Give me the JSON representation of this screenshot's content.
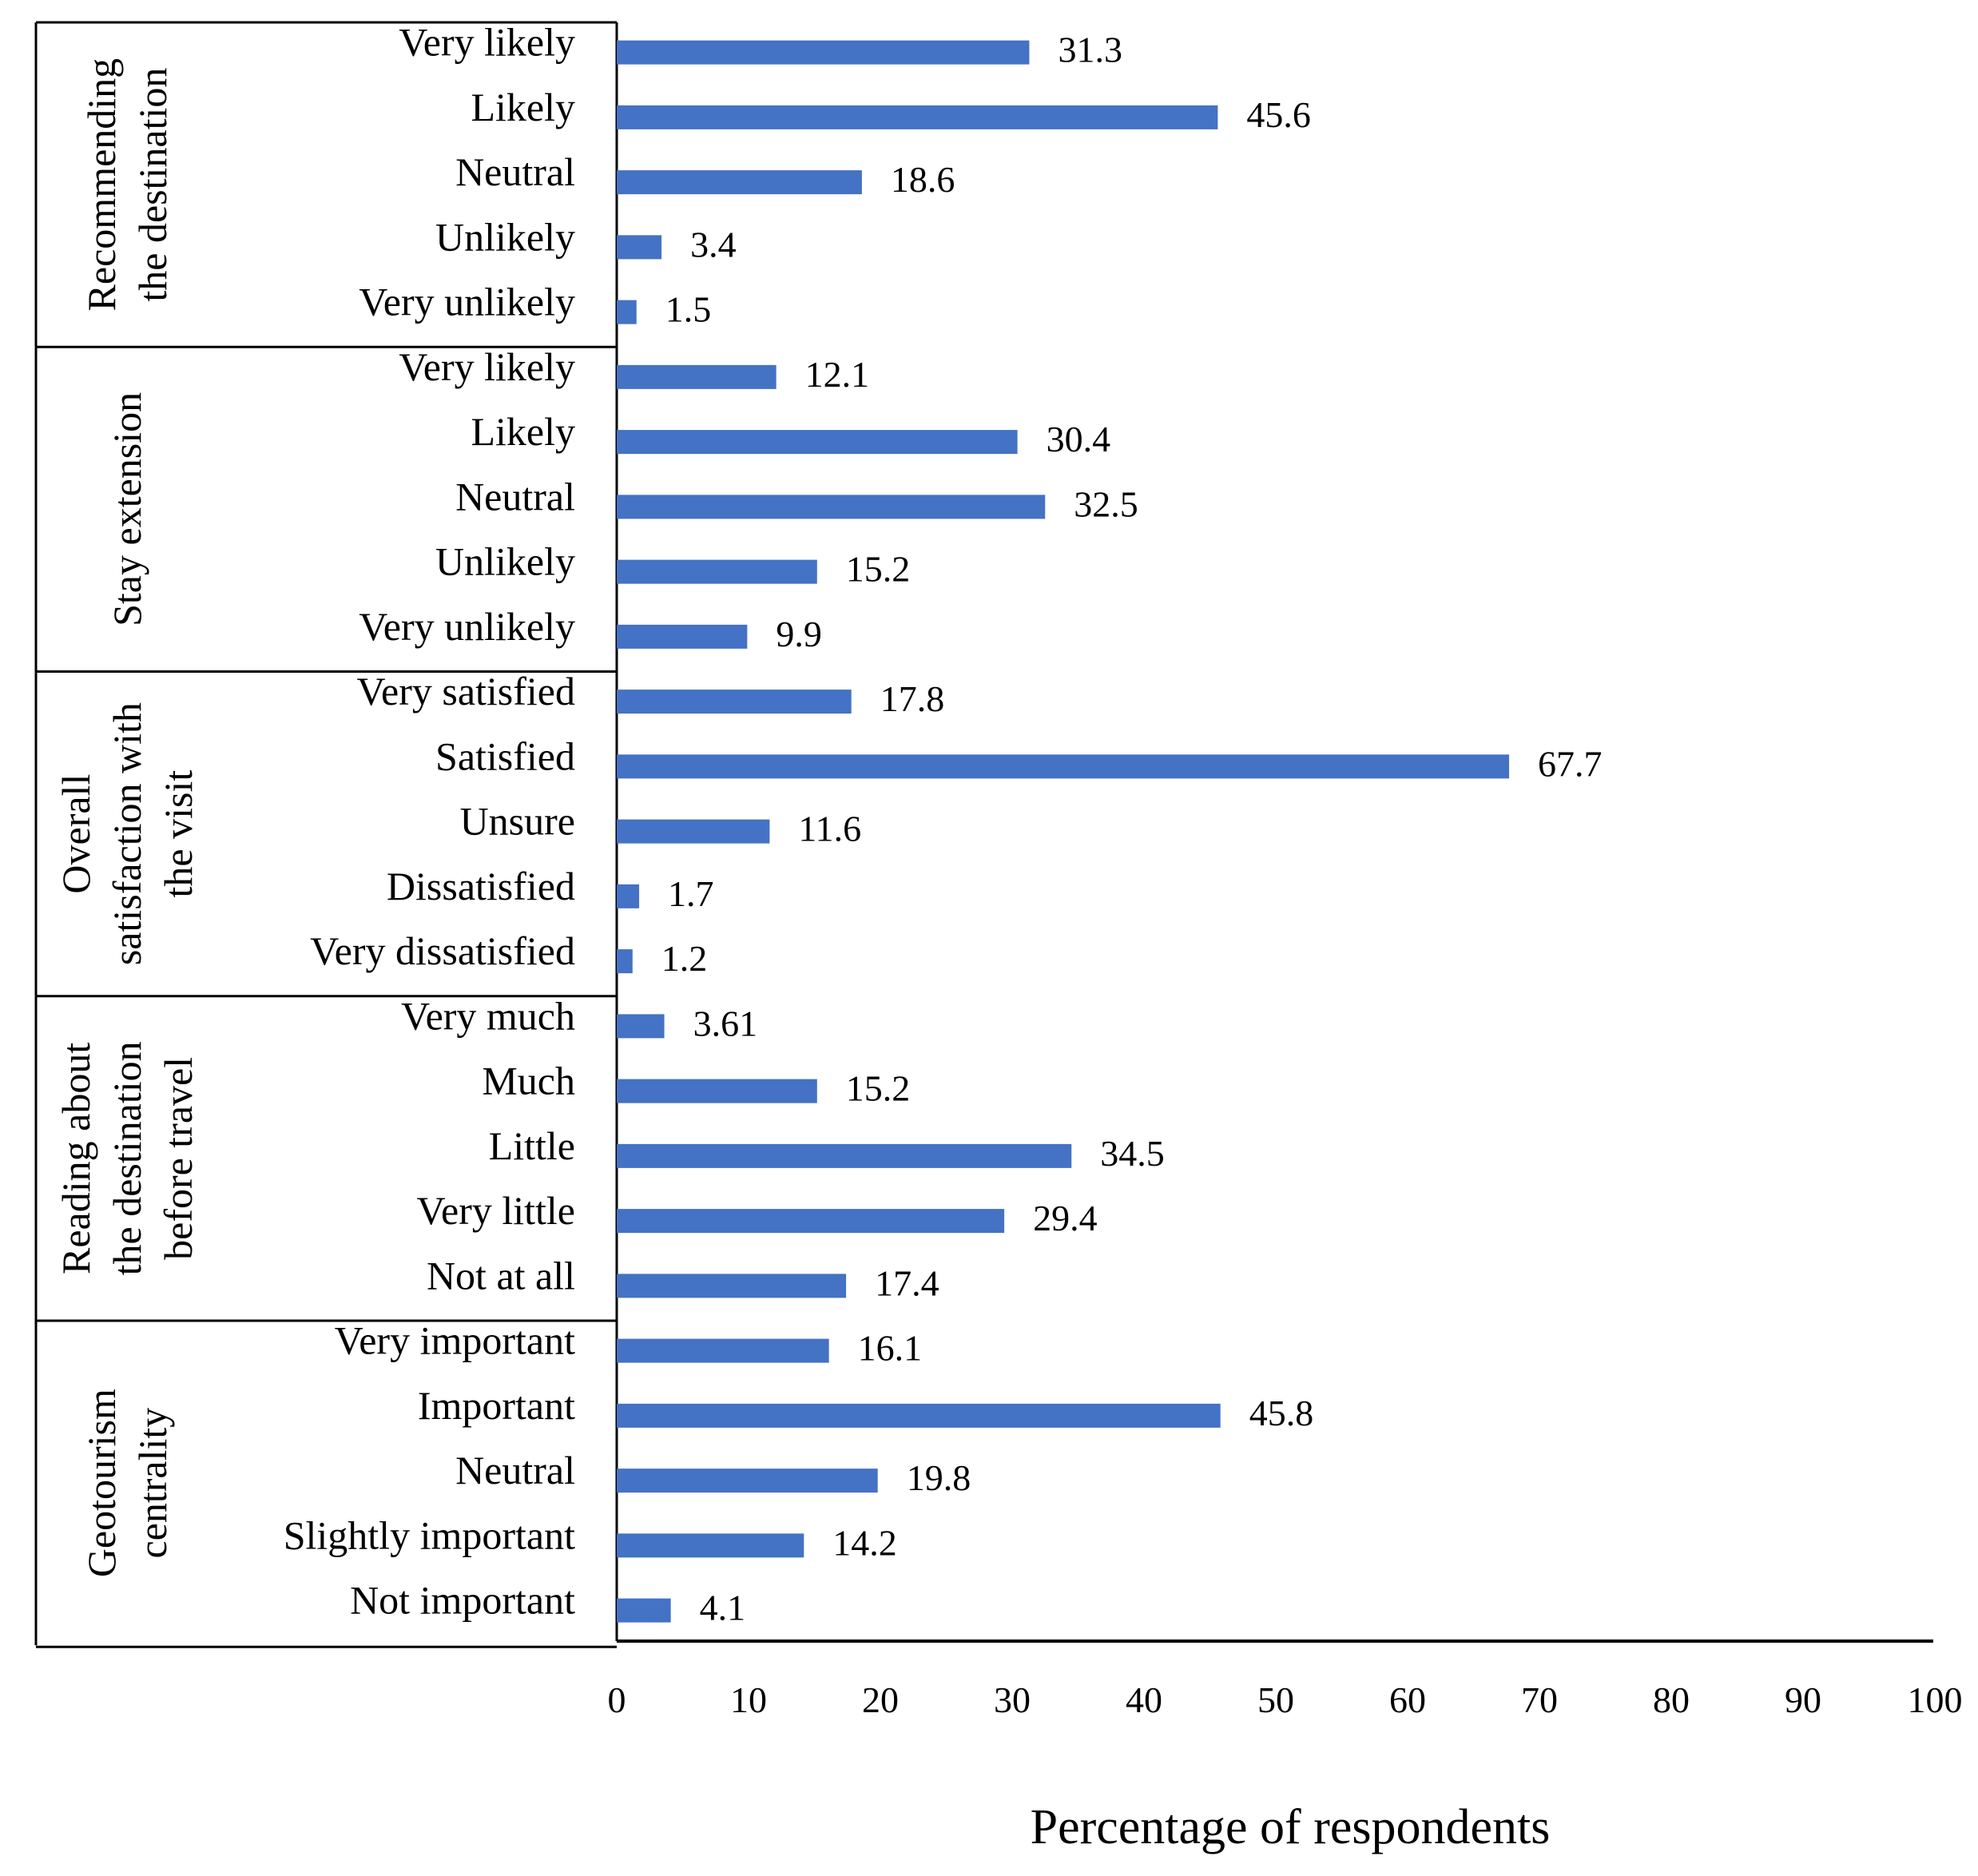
{
  "chart_data": {
    "type": "bar",
    "orientation": "horizontal",
    "xlabel": "Percentage of respondents",
    "xlim": [
      0,
      100
    ],
    "xticks": [
      0,
      10,
      20,
      30,
      40,
      50,
      60,
      70,
      80,
      90,
      100
    ],
    "bar_color": "#4472C4",
    "groups": [
      {
        "name_lines": [
          "Recommending",
          "the destination"
        ],
        "categories": [
          "Very likely",
          "Likely",
          "Neutral",
          "Unlikely",
          "Very unlikely"
        ],
        "values": [
          31.3,
          45.6,
          18.6,
          3.4,
          1.5
        ],
        "labels": [
          "31.3",
          "45.6",
          "18.6",
          "3.4",
          "1.5"
        ]
      },
      {
        "name_lines": [
          "Stay extension"
        ],
        "categories": [
          "Very likely",
          "Likely",
          "Neutral",
          "Unlikely",
          "Very unlikely"
        ],
        "values": [
          12.1,
          30.4,
          32.5,
          15.2,
          9.9
        ],
        "labels": [
          "12.1",
          "30.4",
          "32.5",
          "15.2",
          "9.9"
        ]
      },
      {
        "name_lines": [
          "Overall",
          "satisfaction with",
          "the visit"
        ],
        "categories": [
          "Very satisfied",
          "Satisfied",
          "Unsure",
          "Dissatisfied",
          "Very dissatisfied"
        ],
        "values": [
          17.8,
          67.7,
          11.6,
          1.7,
          1.2
        ],
        "labels": [
          "17.8",
          "67.7",
          "11.6",
          "1.7",
          "1.2"
        ]
      },
      {
        "name_lines": [
          "Reading about",
          "the destination",
          "before travel"
        ],
        "categories": [
          "Very much",
          "Much",
          "Little",
          "Very little",
          "Not at all"
        ],
        "values": [
          3.61,
          15.2,
          34.5,
          29.4,
          17.4
        ],
        "labels": [
          "3.61",
          "15.2",
          "34.5",
          "29.4",
          "17.4"
        ]
      },
      {
        "name_lines": [
          "Geotourism",
          "centrality"
        ],
        "categories": [
          "Very important",
          "Important",
          "Neutral",
          "Slightly important",
          "Not important"
        ],
        "values": [
          16.1,
          45.8,
          19.8,
          14.2,
          4.1
        ],
        "labels": [
          "16.1",
          "45.8",
          "19.8",
          "14.2",
          "4.1"
        ]
      }
    ]
  }
}
